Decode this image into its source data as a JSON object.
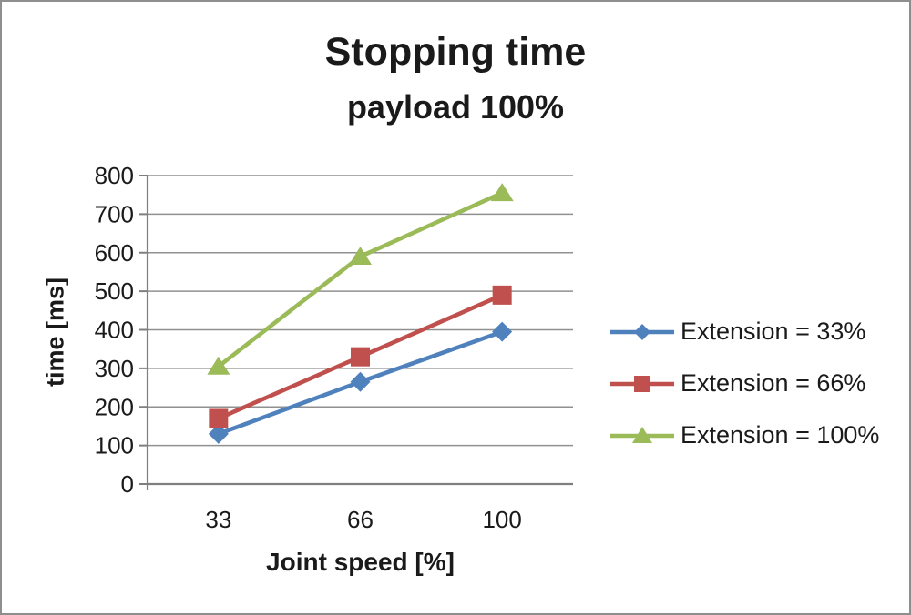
{
  "chart_data": {
    "type": "line",
    "title": "Stopping time",
    "subtitle": "payload 100%",
    "xlabel": "Joint speed [%]",
    "ylabel": "time [ms]",
    "categories": [
      "33",
      "66",
      "100"
    ],
    "series": [
      {
        "name": "Extension = 33%",
        "marker": "diamond",
        "color": "#4f81bd",
        "values": [
          130,
          265,
          395
        ]
      },
      {
        "name": "Extension = 66%",
        "marker": "square",
        "color": "#c0504d",
        "values": [
          170,
          330,
          490
        ]
      },
      {
        "name": "Extension = 100%",
        "marker": "triangle",
        "color": "#9bbb59",
        "values": [
          305,
          590,
          755
        ]
      }
    ],
    "ylim": [
      0,
      800
    ],
    "ytick_step": 100,
    "grid": "horizontal",
    "legend_position": "right",
    "colors": {
      "grid": "#909090",
      "axis": "#7f7f7f",
      "text": "#1a1a1a",
      "background": "#ffffff",
      "border": "#8e8e8e"
    }
  }
}
